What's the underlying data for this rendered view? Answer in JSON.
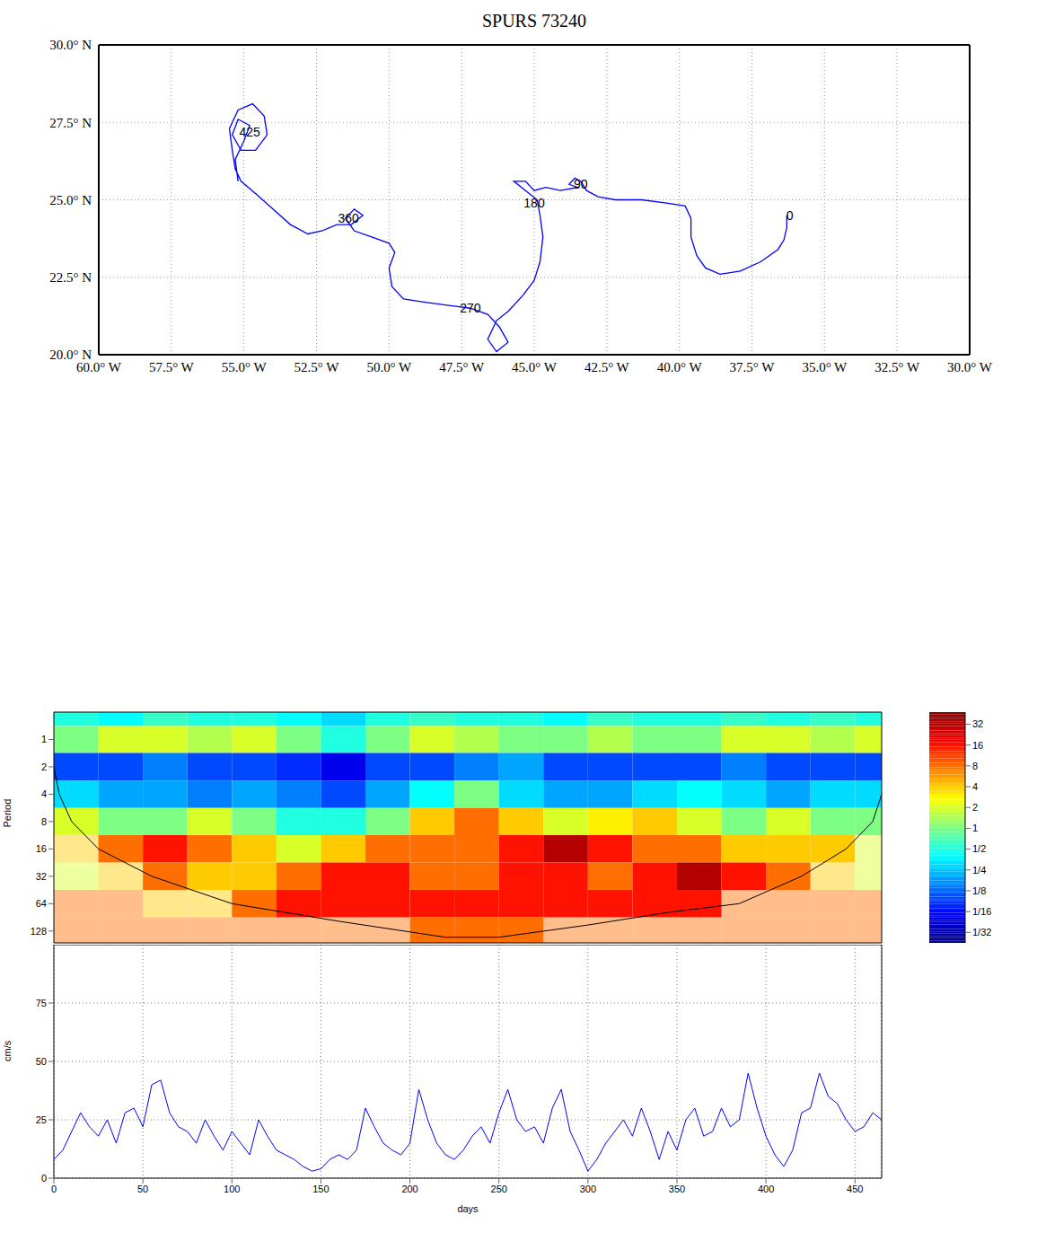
{
  "chart_data": [
    {
      "type": "line",
      "title": "SPURS 73240",
      "color": "#0000ff",
      "line_style": "solid",
      "grid": true,
      "x": [
        -36.3,
        -36.3,
        -36.4,
        -36.6,
        -37.2,
        -37.9,
        -38.6,
        -39.1,
        -39.4,
        -39.6,
        -39.6,
        -39.8,
        -40.5,
        -41.3,
        -42.2,
        -42.8,
        -43.2,
        -43.4,
        -43.6,
        -43.8,
        -43.5,
        -44.1,
        -44.6,
        -45.0,
        -45.3,
        -45.7,
        -45.3,
        -44.9,
        -44.8,
        -44.7,
        -44.8,
        -45.0,
        -45.4,
        -45.9,
        -46.3,
        -46.6,
        -46.3,
        -45.9,
        -46.2,
        -46.6,
        -47.2,
        -48.0,
        -48.8,
        -49.5,
        -49.9,
        -50.0,
        -49.8,
        -50.0,
        -50.6,
        -51.2,
        -51.5,
        -51.2,
        -50.9,
        -51.3,
        -51.8,
        -52.3,
        -52.8,
        -53.4,
        -54.0,
        -54.6,
        -55.1,
        -55.3,
        -55.4,
        -55.5,
        -55.2,
        -54.7,
        -54.3,
        -54.2,
        -54.6,
        -55.1,
        -55.4,
        -55.2,
        -54.8,
        -55.0,
        -55.3,
        -55.2
      ],
      "values": [
        24.5,
        24.1,
        23.7,
        23.4,
        23.0,
        22.7,
        22.6,
        22.8,
        23.2,
        23.8,
        24.4,
        24.8,
        24.9,
        25.0,
        25.0,
        25.1,
        25.3,
        25.6,
        25.7,
        25.5,
        25.4,
        25.3,
        25.4,
        25.3,
        25.6,
        25.6,
        25.3,
        25.0,
        24.5,
        23.8,
        23.0,
        22.4,
        21.9,
        21.4,
        21.1,
        20.5,
        20.1,
        20.4,
        20.9,
        21.3,
        21.5,
        21.6,
        21.7,
        21.8,
        22.2,
        22.8,
        23.3,
        23.6,
        23.8,
        24.0,
        24.4,
        24.7,
        24.5,
        24.2,
        24.2,
        24.0,
        23.9,
        24.2,
        24.7,
        25.2,
        25.6,
        26.0,
        26.6,
        27.3,
        27.9,
        28.1,
        27.7,
        27.1,
        26.6,
        26.6,
        27.1,
        27.6,
        27.4,
        26.9,
        26.3,
        25.6
      ],
      "xlim": [
        -60,
        -30
      ],
      "ylim": [
        20,
        30
      ],
      "xticks": [
        {
          "value": -60,
          "label": "60.0° W"
        },
        {
          "value": -57.5,
          "label": "57.5° W"
        },
        {
          "value": -55,
          "label": "55.0° W"
        },
        {
          "value": -52.5,
          "label": "52.5° W"
        },
        {
          "value": -50,
          "label": "50.0° W"
        },
        {
          "value": -47.5,
          "label": "47.5° W"
        },
        {
          "value": -45,
          "label": "45.0° W"
        },
        {
          "value": -42.5,
          "label": "42.5° W"
        },
        {
          "value": -40,
          "label": "40.0° W"
        },
        {
          "value": -37.5,
          "label": "37.5° W"
        },
        {
          "value": -35,
          "label": "35.0° W"
        },
        {
          "value": -32.5,
          "label": "32.5° W"
        },
        {
          "value": -30,
          "label": "30.0° W"
        }
      ],
      "yticks": [
        {
          "value": 20,
          "label": "20.0° N"
        },
        {
          "value": 22.5,
          "label": "22.5° N"
        },
        {
          "value": 25,
          "label": "25.0° N"
        },
        {
          "value": 27.5,
          "label": "27.5° N"
        },
        {
          "value": 30,
          "label": "30.0° N"
        }
      ],
      "annotations": [
        {
          "text": "0",
          "x": -36.2,
          "y": 24.5
        },
        {
          "text": "90",
          "x": -43.4,
          "y": 25.5
        },
        {
          "text": "180",
          "x": -45.0,
          "y": 24.9
        },
        {
          "text": "270",
          "x": -47.2,
          "y": 21.5
        },
        {
          "text": "360",
          "x": -51.4,
          "y": 24.4
        },
        {
          "text": "425",
          "x": -54.8,
          "y": 27.2
        }
      ]
    },
    {
      "type": "heatmap",
      "ylabel": "Period",
      "log": "y",
      "tick_labels": "y",
      "xlim": [
        0,
        465
      ],
      "ylim": [
        0.5,
        173
      ],
      "yticks": [
        1,
        2,
        4,
        8,
        16,
        32,
        64,
        128
      ],
      "x_bins": [
        0,
        25,
        50,
        75,
        100,
        125,
        150,
        175,
        200,
        225,
        250,
        275,
        300,
        325,
        350,
        375,
        400,
        425,
        450,
        465
      ],
      "y_bins": [
        0.5,
        0.71,
        1.41,
        2.83,
        5.66,
        11.3,
        22.6,
        45.3,
        90.5,
        173
      ],
      "cells": [
        [
          0.5,
          0.4,
          0.6,
          0.5,
          0.5,
          0.4,
          0.3,
          0.5,
          0.6,
          0.5,
          0.5,
          0.4,
          0.6,
          0.5,
          0.5,
          0.6,
          0.5,
          0.6,
          0.5
        ],
        [
          1,
          2,
          2,
          1.5,
          2,
          1,
          0.5,
          1,
          2,
          1.5,
          1,
          1,
          1.5,
          1,
          1,
          2,
          2,
          1.5,
          2
        ],
        [
          0.1,
          0.1,
          0.15,
          0.1,
          0.1,
          0.08,
          0.05,
          0.1,
          0.1,
          0.15,
          0.2,
          0.1,
          0.1,
          0.1,
          0.1,
          0.15,
          0.1,
          0.1,
          0.1
        ],
        [
          0.3,
          0.2,
          0.2,
          0.15,
          0.2,
          0.15,
          0.1,
          0.2,
          0.4,
          1,
          0.3,
          0.2,
          0.2,
          0.3,
          0.4,
          0.3,
          0.2,
          0.3,
          0.3
        ],
        [
          2,
          1,
          1,
          2,
          1,
          0.5,
          0.5,
          1,
          4,
          8,
          4,
          2,
          3,
          4,
          2,
          1,
          2,
          1,
          1
        ],
        [
          4,
          8,
          16,
          8,
          4,
          2,
          4,
          8,
          8,
          8,
          16,
          32,
          16,
          8,
          8,
          4,
          4,
          4,
          2
        ],
        [
          2,
          4,
          8,
          4,
          4,
          8,
          16,
          16,
          8,
          8,
          16,
          16,
          8,
          16,
          32,
          16,
          8,
          4,
          2
        ],
        [
          8,
          8,
          4,
          4,
          8,
          16,
          16,
          16,
          16,
          16,
          16,
          16,
          16,
          16,
          16,
          8,
          8,
          8,
          8
        ],
        [
          8,
          8,
          8,
          8,
          8,
          8,
          8,
          8,
          8,
          8,
          8,
          8,
          8,
          8,
          8,
          8,
          8,
          8,
          8
        ]
      ],
      "coi": {
        "x": [
          0,
          3,
          10,
          25,
          55,
          100,
          160,
          220,
          250,
          300,
          345,
          385,
          420,
          445,
          460,
          465
        ],
        "y": [
          2,
          4,
          8,
          16,
          32,
          64,
          100,
          150,
          150,
          110,
          80,
          64,
          32,
          16,
          8,
          4
        ]
      },
      "colorbar_range": [
        0.022,
        48
      ],
      "colorbar_ticks": [
        {
          "value": 0.03125,
          "label": "1/32"
        },
        {
          "value": 0.0625,
          "label": "1/16"
        },
        {
          "value": 0.125,
          "label": "1/8"
        },
        {
          "value": 0.25,
          "label": "1/4"
        },
        {
          "value": 0.5,
          "label": "1/2"
        },
        1,
        2,
        4,
        8,
        16,
        32
      ]
    },
    {
      "type": "line",
      "xlabel": "days",
      "ylabel": "cm/s",
      "color": "#0000ff",
      "grid": true,
      "x": [
        0,
        5,
        10,
        15,
        20,
        25,
        30,
        35,
        40,
        45,
        50,
        55,
        60,
        65,
        70,
        75,
        80,
        85,
        90,
        95,
        100,
        105,
        110,
        115,
        120,
        125,
        130,
        135,
        140,
        145,
        150,
        155,
        160,
        165,
        170,
        175,
        180,
        185,
        190,
        195,
        200,
        205,
        210,
        215,
        220,
        225,
        230,
        235,
        240,
        245,
        250,
        255,
        260,
        265,
        270,
        275,
        280,
        285,
        290,
        295,
        300,
        305,
        310,
        315,
        320,
        325,
        330,
        335,
        340,
        345,
        350,
        355,
        360,
        365,
        370,
        375,
        380,
        385,
        390,
        395,
        400,
        405,
        410,
        415,
        420,
        425,
        430,
        435,
        440,
        445,
        450,
        455,
        460,
        465
      ],
      "values": [
        8,
        12,
        20,
        28,
        22,
        18,
        25,
        15,
        28,
        30,
        22,
        40,
        42,
        28,
        22,
        20,
        15,
        25,
        18,
        12,
        20,
        15,
        10,
        25,
        18,
        12,
        10,
        8,
        5,
        3,
        4,
        8,
        10,
        8,
        12,
        30,
        22,
        15,
        12,
        10,
        15,
        38,
        25,
        15,
        10,
        8,
        12,
        18,
        22,
        15,
        28,
        38,
        25,
        20,
        22,
        15,
        30,
        38,
        20,
        12,
        3,
        8,
        15,
        20,
        25,
        18,
        30,
        20,
        8,
        20,
        12,
        25,
        30,
        18,
        20,
        30,
        22,
        25,
        45,
        30,
        18,
        10,
        5,
        12,
        28,
        30,
        45,
        35,
        32,
        25,
        20,
        22,
        28,
        25
      ],
      "xlim": [
        0,
        465
      ],
      "ylim": [
        0,
        100
      ],
      "xticks": [
        0,
        50,
        100,
        150,
        200,
        250,
        300,
        350,
        400,
        450
      ],
      "yticks": [
        0,
        25,
        50,
        75
      ]
    }
  ]
}
